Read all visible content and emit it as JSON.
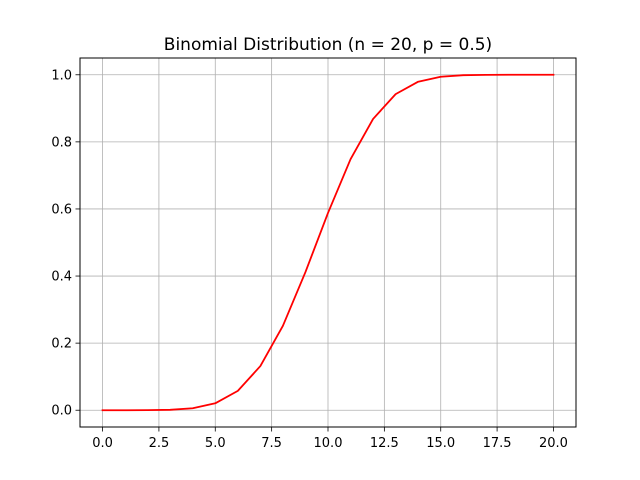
{
  "chart_data": {
    "type": "line",
    "title": "Binomial Distribution (n = 20, p = 0.5)",
    "xlabel": "",
    "ylabel": "",
    "xlim": [
      -1.0,
      21.0
    ],
    "ylim": [
      -0.05,
      1.05
    ],
    "grid": true,
    "x_ticks": [
      "0.0",
      "2.5",
      "5.0",
      "7.5",
      "10.0",
      "12.5",
      "15.0",
      "17.5",
      "20.0"
    ],
    "y_ticks": [
      "0.0",
      "0.2",
      "0.4",
      "0.6",
      "0.8",
      "1.0"
    ],
    "series": [
      {
        "color": "#ff0000",
        "x": [
          0,
          1,
          2,
          3,
          4,
          5,
          6,
          7,
          8,
          9,
          10,
          11,
          12,
          13,
          14,
          15,
          16,
          17,
          18,
          19,
          20
        ],
        "values": [
          0.0,
          0.0,
          0.0002,
          0.0013,
          0.0059,
          0.0207,
          0.0577,
          0.1316,
          0.2517,
          0.4119,
          0.5881,
          0.7483,
          0.8684,
          0.9423,
          0.9793,
          0.9941,
          0.9987,
          0.9998,
          1.0,
          1.0,
          1.0
        ]
      }
    ]
  }
}
